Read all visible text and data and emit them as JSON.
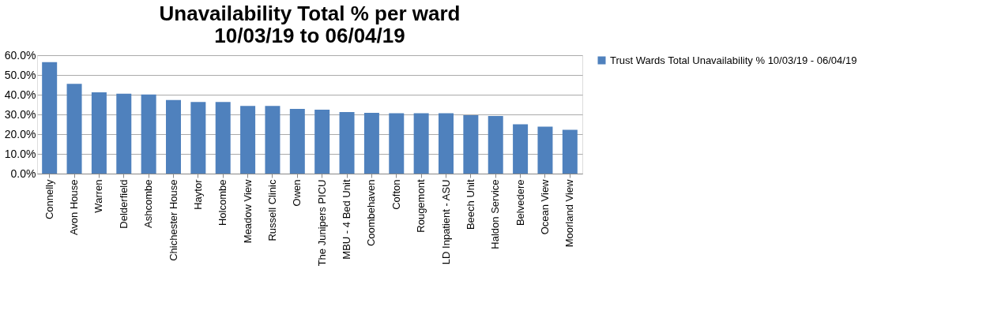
{
  "chart_data": {
    "type": "bar",
    "title": "Unavailability Total % per ward\n10/03/19 to 06/04/19",
    "categories": [
      "Connelly",
      "Avon House",
      "Warren",
      "Delderfield",
      "Ashcombe",
      "Chichester House",
      "Haytor",
      "Holcombe",
      "Meadow View",
      "Russell Clinic",
      "Owen",
      "The Junipers PICU",
      "MBU - 4 Bed Unit",
      "Coombehaven",
      "Cofton",
      "Rougemont",
      "LD Inpatient - ASU",
      "Beech Unit",
      "Haldon Service",
      "Belvedere",
      "Ocean View",
      "Moorland View"
    ],
    "series": [
      {
        "name": "Trust Wards Total Unavailability % 10/03/19 - 06/04/19",
        "color": "#4f81bd",
        "values": [
          56.5,
          45.5,
          41.2,
          40.5,
          40.1,
          37.3,
          36.3,
          36.3,
          34.3,
          34.3,
          32.8,
          32.4,
          31.2,
          30.8,
          30.6,
          30.6,
          30.6,
          29.6,
          29.2,
          25.0,
          23.8,
          22.2
        ]
      }
    ],
    "ylim": [
      0,
      60
    ],
    "yticks": [
      {
        "value": 0,
        "label": "0.0%"
      },
      {
        "value": 10,
        "label": "10.0%"
      },
      {
        "value": 20,
        "label": "20.0%"
      },
      {
        "value": 30,
        "label": "30.0%"
      },
      {
        "value": 40,
        "label": "40.0%"
      },
      {
        "value": 50,
        "label": "50.0%"
      },
      {
        "value": 60,
        "label": "60.0%"
      }
    ],
    "grid": "y",
    "legend": "right"
  }
}
